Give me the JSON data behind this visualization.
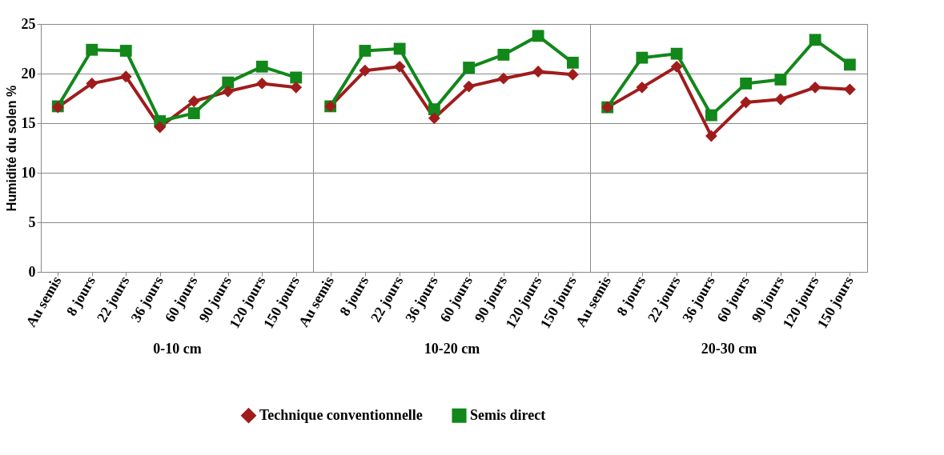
{
  "chart_data": [
    {
      "type": "line",
      "xlabel": "0-10 cm",
      "ylabel": "Humidité du solen %",
      "categories": [
        "Au semis",
        "8 jours",
        "22 jours",
        "36 jours",
        "60 jours",
        "90 jours",
        "120 jours",
        "150 jours"
      ],
      "ylim": [
        0,
        25
      ],
      "yticks": [
        0,
        5,
        10,
        15,
        20,
        25
      ],
      "grid": "y",
      "legend": "bottom",
      "line_style": "solid",
      "series": [
        {
          "name": "Technique conventionnelle",
          "color": "#a01c1c",
          "marker": "diamond",
          "values": [
            16.6,
            19.0,
            19.7,
            14.6,
            17.2,
            18.2,
            19.0,
            18.6
          ]
        },
        {
          "name": "Semis direct",
          "color": "#12871a",
          "marker": "square",
          "values": [
            16.7,
            22.4,
            22.3,
            15.2,
            16.0,
            19.1,
            20.7,
            19.6
          ]
        }
      ]
    },
    {
      "type": "line",
      "xlabel": "10-20 cm",
      "categories": [
        "Au semis",
        "8 jours",
        "22 jours",
        "36 jours",
        "60 jours",
        "90 jours",
        "120 jours",
        "150 jours"
      ],
      "ylim": [
        0,
        25
      ],
      "yticks": [
        0,
        5,
        10,
        15,
        20,
        25
      ],
      "grid": "y",
      "tick_labels": "x",
      "line_style": "solid",
      "series": [
        {
          "color": "#a01c1c",
          "marker": "diamond",
          "values": [
            16.7,
            20.3,
            20.7,
            15.5,
            18.7,
            19.5,
            20.2,
            19.9
          ]
        },
        {
          "color": "#12871a",
          "marker": "square",
          "values": [
            16.7,
            22.3,
            22.5,
            16.4,
            20.6,
            21.9,
            23.8,
            21.1
          ]
        }
      ]
    },
    {
      "type": "line",
      "xlabel": "20-30 cm",
      "categories": [
        "Au semis",
        "8 jours",
        "22 jours",
        "36 jours",
        "60 jours",
        "90 jours",
        "120 jours",
        "150 jours"
      ],
      "ylim": [
        0,
        25
      ],
      "yticks": [
        0,
        5,
        10,
        15,
        20,
        25
      ],
      "grid": "y",
      "legend": false,
      "tick_labels": "x",
      "line_style": "solid",
      "series": [
        {
          "color": "#a01c1c",
          "marker": "diamond",
          "values": [
            16.6,
            18.6,
            20.7,
            13.7,
            17.1,
            17.4,
            18.6,
            18.4
          ]
        },
        {
          "color": "#12871a",
          "marker": "square",
          "values": [
            16.6,
            21.6,
            22.0,
            15.8,
            19.0,
            19.4,
            23.4,
            20.9
          ]
        }
      ]
    }
  ]
}
